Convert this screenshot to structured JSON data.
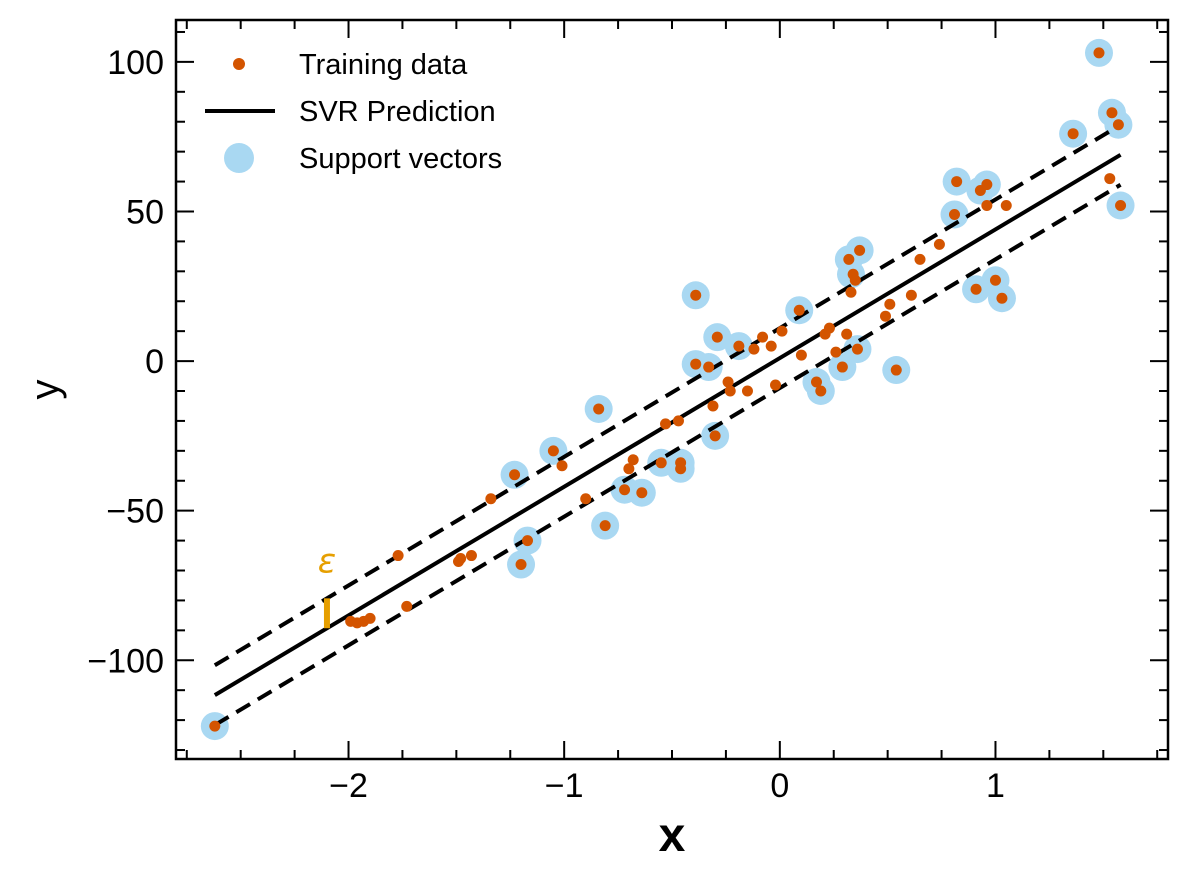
{
  "chart_data": {
    "type": "scatter",
    "title": "",
    "xlabel": "x",
    "ylabel": "y",
    "xlim": [
      -2.8,
      1.8
    ],
    "ylim": [
      -133,
      114
    ],
    "xticks": [
      -2,
      -1,
      0,
      1
    ],
    "xtick_labels": [
      "−2",
      "−1",
      "0",
      "1"
    ],
    "yticks": [
      -100,
      -50,
      0,
      50,
      100
    ],
    "ytick_labels": [
      "−100",
      "−50",
      "0",
      "50",
      "100"
    ],
    "grid": false,
    "legend_position": "upper-left",
    "epsilon_label": "ε",
    "colors": {
      "training": "#d35400",
      "support": "#a9d8f2",
      "prediction": "#000000",
      "epsilon": "#e69f00"
    },
    "prediction": {
      "slope": 43.0,
      "intercept": 1.0,
      "epsilon": 10.0,
      "x_range": [
        -2.62,
        1.58
      ]
    },
    "series": [
      {
        "name": "Training data",
        "marker": "dot",
        "points": [
          [
            -2.62,
            -122
          ],
          [
            -1.99,
            -87
          ],
          [
            -1.96,
            -87.5
          ],
          [
            -1.93,
            -87
          ],
          [
            -1.9,
            -86
          ],
          [
            -1.77,
            -65
          ],
          [
            -1.73,
            -82
          ],
          [
            -1.49,
            -67
          ],
          [
            -1.48,
            -66
          ],
          [
            -1.43,
            -65
          ],
          [
            -1.34,
            -46
          ],
          [
            -1.23,
            -38
          ],
          [
            -1.2,
            -68
          ],
          [
            -1.17,
            -60
          ],
          [
            -1.05,
            -30
          ],
          [
            -1.01,
            -35
          ],
          [
            -0.9,
            -46
          ],
          [
            -0.84,
            -16
          ],
          [
            -0.81,
            -55
          ],
          [
            -0.72,
            -43
          ],
          [
            -0.7,
            -36
          ],
          [
            -0.68,
            -33
          ],
          [
            -0.64,
            -44
          ],
          [
            -0.55,
            -34
          ],
          [
            -0.53,
            -21
          ],
          [
            -0.47,
            -20
          ],
          [
            -0.46,
            -34
          ],
          [
            -0.46,
            -36
          ],
          [
            -0.39,
            22
          ],
          [
            -0.39,
            -1
          ],
          [
            -0.33,
            -2
          ],
          [
            -0.31,
            -15
          ],
          [
            -0.3,
            -25
          ],
          [
            -0.29,
            8
          ],
          [
            -0.24,
            -7
          ],
          [
            -0.23,
            -10
          ],
          [
            -0.19,
            5
          ],
          [
            -0.15,
            -10
          ],
          [
            -0.12,
            4
          ],
          [
            -0.08,
            8
          ],
          [
            -0.04,
            5
          ],
          [
            -0.02,
            -8
          ],
          [
            0.01,
            10
          ],
          [
            0.09,
            17
          ],
          [
            0.1,
            2
          ],
          [
            0.17,
            -7
          ],
          [
            0.19,
            -10
          ],
          [
            0.21,
            9
          ],
          [
            0.23,
            11
          ],
          [
            0.26,
            3
          ],
          [
            0.29,
            -2
          ],
          [
            0.31,
            9
          ],
          [
            0.32,
            34
          ],
          [
            0.33,
            23
          ],
          [
            0.34,
            29
          ],
          [
            0.35,
            27
          ],
          [
            0.36,
            4
          ],
          [
            0.37,
            37
          ],
          [
            0.49,
            15
          ],
          [
            0.51,
            19
          ],
          [
            0.54,
            -3
          ],
          [
            0.61,
            22
          ],
          [
            0.65,
            34
          ],
          [
            0.74,
            39
          ],
          [
            0.81,
            49
          ],
          [
            0.82,
            60
          ],
          [
            0.91,
            24
          ],
          [
            0.93,
            57
          ],
          [
            0.96,
            59
          ],
          [
            0.96,
            52
          ],
          [
            1.0,
            27
          ],
          [
            1.03,
            21
          ],
          [
            1.05,
            52
          ],
          [
            1.36,
            76
          ],
          [
            1.48,
            103
          ],
          [
            1.53,
            61
          ],
          [
            1.54,
            83
          ],
          [
            1.57,
            79
          ],
          [
            1.58,
            52
          ]
        ]
      },
      {
        "name": "SVR Prediction",
        "marker": "line"
      },
      {
        "name": "Support vectors",
        "marker": "circle",
        "points": [
          [
            -2.62,
            -122
          ],
          [
            -1.23,
            -38
          ],
          [
            -1.2,
            -68
          ],
          [
            -1.17,
            -60
          ],
          [
            -1.05,
            -30
          ],
          [
            -0.84,
            -16
          ],
          [
            -0.81,
            -55
          ],
          [
            -0.72,
            -43
          ],
          [
            -0.64,
            -44
          ],
          [
            -0.55,
            -34
          ],
          [
            -0.46,
            -34
          ],
          [
            -0.46,
            -36
          ],
          [
            -0.39,
            22
          ],
          [
            -0.39,
            -1
          ],
          [
            -0.33,
            -2
          ],
          [
            -0.3,
            -25
          ],
          [
            -0.29,
            8
          ],
          [
            -0.19,
            5
          ],
          [
            0.09,
            17
          ],
          [
            0.17,
            -7
          ],
          [
            0.19,
            -10
          ],
          [
            0.29,
            -2
          ],
          [
            0.32,
            34
          ],
          [
            0.33,
            29
          ],
          [
            0.36,
            4
          ],
          [
            0.37,
            37
          ],
          [
            0.54,
            -3
          ],
          [
            0.81,
            49
          ],
          [
            0.82,
            60
          ],
          [
            0.91,
            24
          ],
          [
            0.93,
            57
          ],
          [
            0.96,
            59
          ],
          [
            1.0,
            27
          ],
          [
            1.03,
            21
          ],
          [
            1.36,
            76
          ],
          [
            1.48,
            103
          ],
          [
            1.54,
            83
          ],
          [
            1.57,
            79
          ],
          [
            1.58,
            52
          ]
        ]
      }
    ]
  }
}
